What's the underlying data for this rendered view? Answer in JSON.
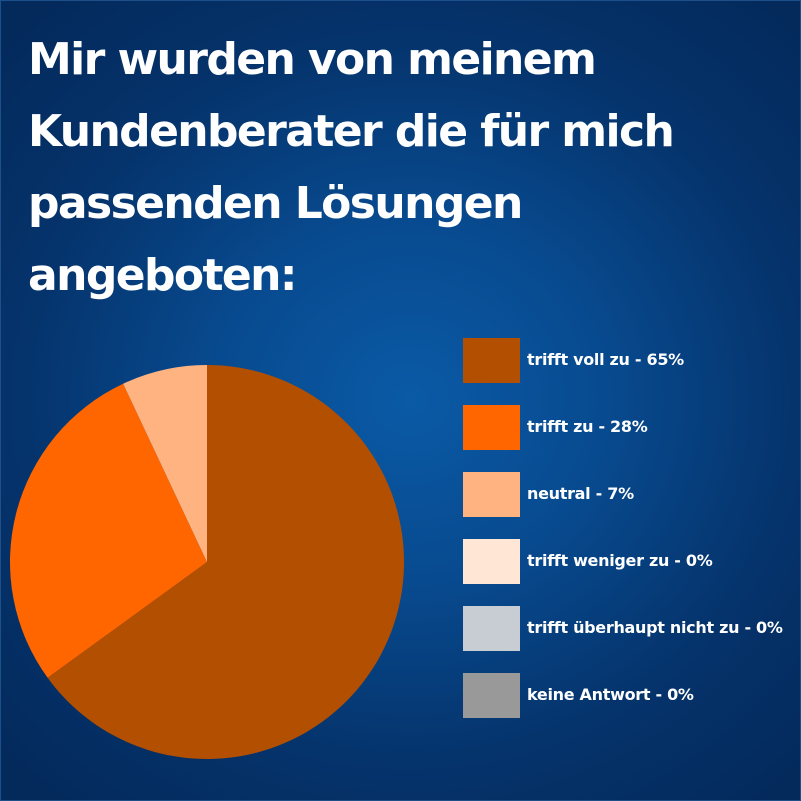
{
  "title_lines": [
    "Mir wurden von meinem",
    "Kundenberater die für mich",
    "passenden Lösungen",
    "angeboten:"
  ],
  "colors": {
    "background": "#05336b",
    "text": "#ffffff"
  },
  "chart_data": {
    "type": "pie",
    "title": "Mir wurden von meinem Kundenberater die für mich passenden Lösungen angeboten:",
    "unit": "%",
    "start_angle_deg": 0,
    "direction": "clockwise",
    "legend_position": "right",
    "slices": [
      {
        "label": "trifft voll zu - 65%",
        "category": "trifft voll zu",
        "value": 65,
        "color": "#b34f00"
      },
      {
        "label": "trifft zu - 28%",
        "category": "trifft zu",
        "value": 28,
        "color": "#ff6600"
      },
      {
        "label": "neutral - 7%",
        "category": "neutral",
        "value": 7,
        "color": "#ffb380"
      },
      {
        "label": "trifft weniger zu - 0%",
        "category": "trifft weniger zu",
        "value": 0,
        "color": "#ffe6d5"
      },
      {
        "label": "trifft überhaupt nicht zu - 0%",
        "category": "trifft überhaupt nicht zu",
        "value": 0,
        "color": "#c8cdd3"
      },
      {
        "label": "keine Antwort - 0%",
        "category": "keine Antwort",
        "value": 0,
        "color": "#999999"
      }
    ]
  }
}
